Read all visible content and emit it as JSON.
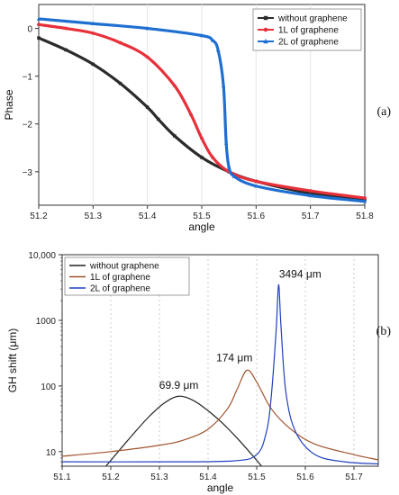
{
  "chart_data": [
    {
      "type": "line",
      "panel_label": "(a)",
      "xlabel": "angle",
      "ylabel": "Phase",
      "xlim": [
        51.2,
        51.8
      ],
      "ylim": [
        -3.7,
        0.5
      ],
      "xticks": [
        "51.2",
        "51.3",
        "51.4",
        "51.5",
        "51.6",
        "51.7",
        "51.8"
      ],
      "yticks": [
        "0",
        "−1",
        "−2",
        "−3"
      ],
      "xtick_values": [
        51.2,
        51.3,
        51.4,
        51.5,
        51.6,
        51.7,
        51.8
      ],
      "ytick_values": [
        0,
        -1,
        -2,
        -3
      ],
      "legend_position": "top-right",
      "series": [
        {
          "name": "without graphene",
          "color": "#2b2b2b",
          "marker": "square",
          "x": [
            51.2,
            51.25,
            51.3,
            51.35,
            51.4,
            51.42,
            51.45,
            51.5,
            51.55,
            51.6,
            51.7,
            51.8
          ],
          "y": [
            -0.2,
            -0.45,
            -0.75,
            -1.15,
            -1.65,
            -1.9,
            -2.25,
            -2.7,
            -3.0,
            -3.2,
            -3.45,
            -3.58
          ]
        },
        {
          "name": "1L of graphene",
          "color": "#e8303a",
          "marker": "circle",
          "x": [
            51.2,
            51.25,
            51.3,
            51.35,
            51.4,
            51.45,
            51.48,
            51.5,
            51.52,
            51.55,
            51.6,
            51.7,
            51.8
          ],
          "y": [
            0.08,
            0.0,
            -0.1,
            -0.3,
            -0.6,
            -1.2,
            -1.8,
            -2.3,
            -2.7,
            -3.0,
            -3.2,
            -3.4,
            -3.55
          ]
        },
        {
          "name": "2L of graphene",
          "color": "#1f6fd1",
          "marker": "triangle",
          "x": [
            51.2,
            51.3,
            51.4,
            51.5,
            51.52,
            51.53,
            51.54,
            51.545,
            51.55,
            51.56,
            51.6,
            51.7,
            51.8
          ],
          "y": [
            0.2,
            0.1,
            0.0,
            -0.15,
            -0.25,
            -0.45,
            -1.2,
            -2.4,
            -2.9,
            -3.1,
            -3.3,
            -3.5,
            -3.62
          ]
        }
      ]
    },
    {
      "type": "line",
      "panel_label": "(b)",
      "xlabel": "angle",
      "ylabel": "GH shift (μm)",
      "yscale": "log",
      "xlim": [
        51.1,
        51.75
      ],
      "ylim": [
        6,
        10000
      ],
      "xticks": [
        "51.1",
        "51.2",
        "51.3",
        "51.4",
        "51.5",
        "51.6",
        "51.7"
      ],
      "xtick_values": [
        51.1,
        51.2,
        51.3,
        51.4,
        51.5,
        51.6,
        51.7
      ],
      "yticks": [
        "10",
        "100",
        "1000",
        "10,000"
      ],
      "ytick_values": [
        10,
        100,
        1000,
        10000
      ],
      "legend_position": "top-left",
      "annotations": [
        {
          "text": "69.9 μm",
          "x": 51.34,
          "y": 69.9
        },
        {
          "text": "174 μm",
          "x": 51.48,
          "y": 174
        },
        {
          "text": "3494 μm",
          "x": 51.545,
          "y": 3494
        }
      ],
      "series": [
        {
          "name": "without graphene",
          "color": "#222222",
          "x": [
            51.19,
            51.22,
            51.25,
            51.28,
            51.31,
            51.34,
            51.37,
            51.4,
            51.43,
            51.46,
            51.49,
            51.51
          ],
          "y": [
            6,
            11,
            20,
            35,
            55,
            69.9,
            60,
            42,
            27,
            16,
            9,
            6
          ]
        },
        {
          "name": "1L of graphene",
          "color": "#a0522d",
          "x": [
            51.1,
            51.2,
            51.3,
            51.35,
            51.4,
            51.44,
            51.46,
            51.48,
            51.5,
            51.53,
            51.57,
            51.62,
            51.7,
            51.75
          ],
          "y": [
            8.5,
            10,
            12.5,
            15,
            22,
            45,
            90,
            174,
            115,
            45,
            22,
            13,
            9,
            7.5
          ]
        },
        {
          "name": "2L of graphene",
          "color": "#1f3fbf",
          "x": [
            51.1,
            51.3,
            51.45,
            51.5,
            51.52,
            51.53,
            51.54,
            51.545,
            51.55,
            51.56,
            51.58,
            51.62,
            51.68,
            51.75
          ],
          "y": [
            7,
            7,
            7.2,
            9,
            20,
            70,
            700,
            3494,
            800,
            80,
            20,
            9,
            7,
            6.5
          ]
        }
      ]
    }
  ]
}
